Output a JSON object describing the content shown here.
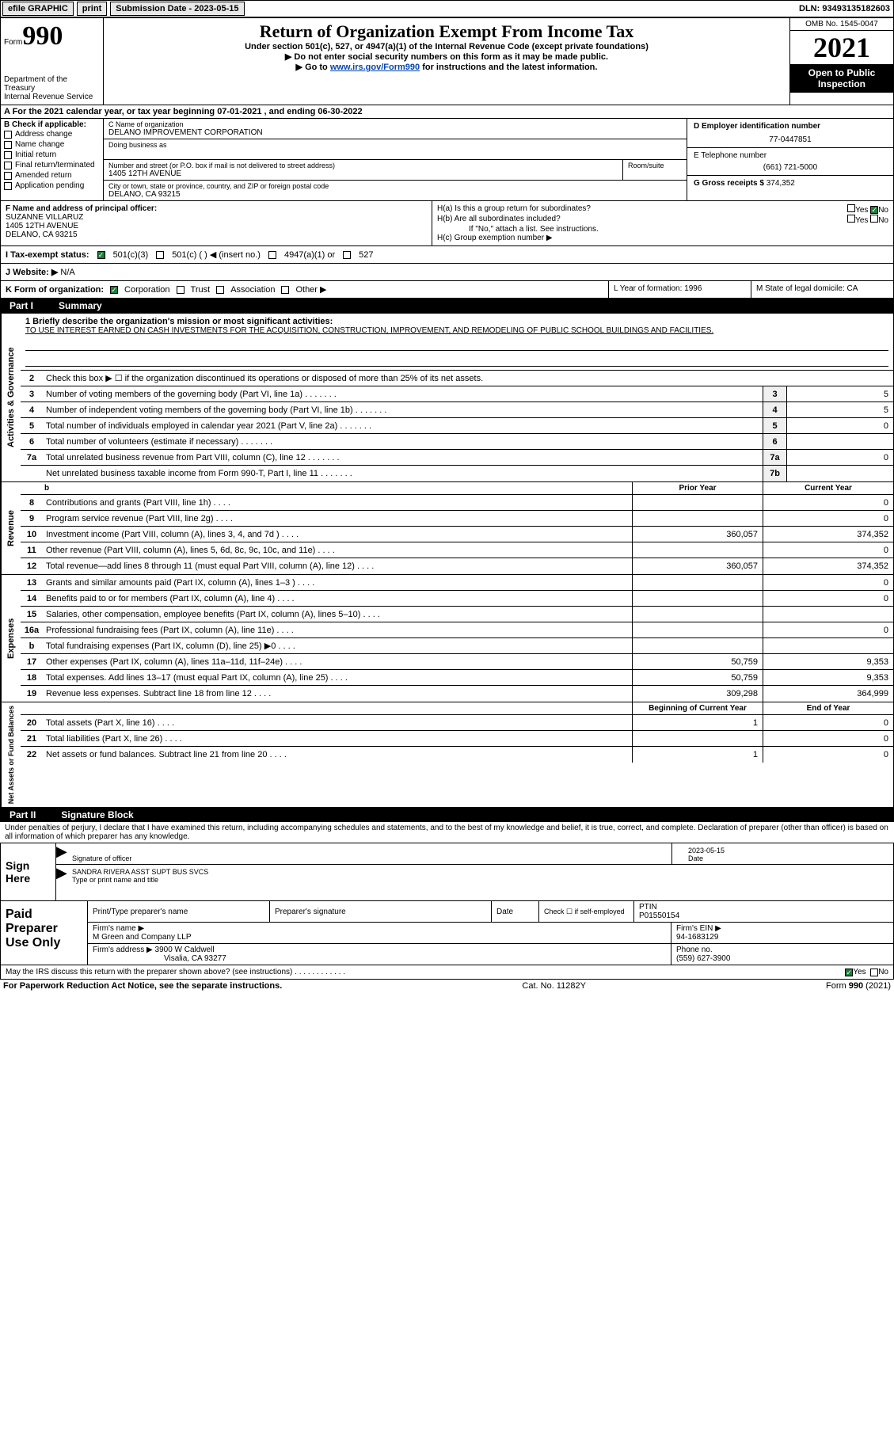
{
  "topbar": {
    "efile": "efile GRAPHIC",
    "print": "print",
    "submission_label": "Submission Date - 2023-05-15",
    "dln_label": "DLN: 93493135182603"
  },
  "header": {
    "form_prefix": "Form",
    "form_num": "990",
    "title": "Return of Organization Exempt From Income Tax",
    "subtitle1": "Under section 501(c), 527, or 4947(a)(1) of the Internal Revenue Code (except private foundations)",
    "subtitle2": "▶ Do not enter social security numbers on this form as it may be made public.",
    "subtitle3_prefix": "▶ Go to ",
    "subtitle3_link": "www.irs.gov/Form990",
    "subtitle3_suffix": " for instructions and the latest information.",
    "dept": "Department of the Treasury\nInternal Revenue Service",
    "omb": "OMB No. 1545-0047",
    "year": "2021",
    "inspection": "Open to Public Inspection"
  },
  "period": {
    "text_a": "A For the 2021 calendar year, or tax year beginning 07-01-2021    , and ending 06-30-2022"
  },
  "section_b": {
    "label": "B Check if applicable:",
    "items": [
      "Address change",
      "Name change",
      "Initial return",
      "Final return/terminated",
      "Amended return",
      "Application pending"
    ]
  },
  "section_c": {
    "name_label": "C Name of organization",
    "name": "DELANO IMPROVEMENT CORPORATION",
    "dba_label": "Doing business as",
    "street_label": "Number and street (or P.O. box if mail is not delivered to street address)",
    "room_label": "Room/suite",
    "street": "1405 12TH AVENUE",
    "city_label": "City or town, state or province, country, and ZIP or foreign postal code",
    "city": "DELANO, CA   93215"
  },
  "section_d": {
    "ein_label": "D Employer identification number",
    "ein": "77-0447851",
    "phone_label": "E Telephone number",
    "phone": "(661) 721-5000",
    "gross_label": "G Gross receipts $",
    "gross": "374,352"
  },
  "section_f": {
    "label": "F Name and address of principal officer:",
    "name": "SUZANNE VILLARUZ",
    "addr1": "1405 12TH AVENUE",
    "addr2": "DELANO, CA  93215"
  },
  "section_h": {
    "ha_label": "H(a)  Is this a group return for subordinates?",
    "hb_label": "H(b)  Are all subordinates included?",
    "hb_note": "If \"No,\" attach a list. See instructions.",
    "hc_label": "H(c)  Group exemption number ▶",
    "yes": "Yes",
    "no": "No"
  },
  "section_i": {
    "label": "I  Tax-exempt status:",
    "opt1": "501(c)(3)",
    "opt2": "501(c) (   ) ◀ (insert no.)",
    "opt3": "4947(a)(1) or",
    "opt4": "527"
  },
  "section_j": {
    "label": "J  Website: ▶",
    "val": "N/A"
  },
  "section_k": {
    "label": "K Form of organization:",
    "corp": "Corporation",
    "trust": "Trust",
    "assoc": "Association",
    "other": "Other ▶",
    "l_label": "L Year of formation: 1996",
    "m_label": "M State of legal domicile: CA"
  },
  "part1": {
    "part": "Part I",
    "title": "Summary",
    "vert_ag": "Activities & Governance",
    "vert_rev": "Revenue",
    "vert_exp": "Expenses",
    "vert_net": "Net Assets or Fund Balances",
    "line1_label": "1  Briefly describe the organization's mission or most significant activities:",
    "mission": "TO USE INTEREST EARNED ON CASH INVESTMENTS FOR THE ACQUISITION, CONSTRUCTION, IMPROVEMENT, AND REMODELING OF PUBLIC SCHOOL BUILDINGS AND FACILITIES.",
    "line2": "Check this box ▶ ☐ if the organization discontinued its operations or disposed of more than 25% of its net assets.",
    "lines_boxed": [
      {
        "n": "3",
        "t": "Number of voting members of the governing body (Part VI, line 1a)",
        "box": "3",
        "v": "5"
      },
      {
        "n": "4",
        "t": "Number of independent voting members of the governing body (Part VI, line 1b)",
        "box": "4",
        "v": "5"
      },
      {
        "n": "5",
        "t": "Total number of individuals employed in calendar year 2021 (Part V, line 2a)",
        "box": "5",
        "v": "0"
      },
      {
        "n": "6",
        "t": "Total number of volunteers (estimate if necessary)",
        "box": "6",
        "v": ""
      },
      {
        "n": "7a",
        "t": "Total unrelated business revenue from Part VIII, column (C), line 12",
        "box": "7a",
        "v": "0"
      },
      {
        "n": "",
        "t": "Net unrelated business taxable income from Form 990-T, Part I, line 11",
        "box": "7b",
        "v": ""
      }
    ],
    "col_prior": "Prior Year",
    "col_curr": "Current Year",
    "rev_lines": [
      {
        "n": "8",
        "t": "Contributions and grants (Part VIII, line 1h)",
        "p": "",
        "c": "0"
      },
      {
        "n": "9",
        "t": "Program service revenue (Part VIII, line 2g)",
        "p": "",
        "c": "0"
      },
      {
        "n": "10",
        "t": "Investment income (Part VIII, column (A), lines 3, 4, and 7d )",
        "p": "360,057",
        "c": "374,352"
      },
      {
        "n": "11",
        "t": "Other revenue (Part VIII, column (A), lines 5, 6d, 8c, 9c, 10c, and 11e)",
        "p": "",
        "c": "0"
      },
      {
        "n": "12",
        "t": "Total revenue—add lines 8 through 11 (must equal Part VIII, column (A), line 12)",
        "p": "360,057",
        "c": "374,352"
      }
    ],
    "exp_lines": [
      {
        "n": "13",
        "t": "Grants and similar amounts paid (Part IX, column (A), lines 1–3 )",
        "p": "",
        "c": "0"
      },
      {
        "n": "14",
        "t": "Benefits paid to or for members (Part IX, column (A), line 4)",
        "p": "",
        "c": "0"
      },
      {
        "n": "15",
        "t": "Salaries, other compensation, employee benefits (Part IX, column (A), lines 5–10)",
        "p": "",
        "c": ""
      },
      {
        "n": "16a",
        "t": "Professional fundraising fees (Part IX, column (A), line 11e)",
        "p": "",
        "c": "0"
      },
      {
        "n": "b",
        "t": "Total fundraising expenses (Part IX, column (D), line 25) ▶0",
        "p": "shaded",
        "c": "shaded"
      },
      {
        "n": "17",
        "t": "Other expenses (Part IX, column (A), lines 11a–11d, 11f–24e)",
        "p": "50,759",
        "c": "9,353"
      },
      {
        "n": "18",
        "t": "Total expenses. Add lines 13–17 (must equal Part IX, column (A), line 25)",
        "p": "50,759",
        "c": "9,353"
      },
      {
        "n": "19",
        "t": "Revenue less expenses. Subtract line 18 from line 12",
        "p": "309,298",
        "c": "364,999"
      }
    ],
    "col_begin": "Beginning of Current Year",
    "col_end": "End of Year",
    "net_lines": [
      {
        "n": "20",
        "t": "Total assets (Part X, line 16)",
        "p": "1",
        "c": "0"
      },
      {
        "n": "21",
        "t": "Total liabilities (Part X, line 26)",
        "p": "",
        "c": "0"
      },
      {
        "n": "22",
        "t": "Net assets or fund balances. Subtract line 21 from line 20",
        "p": "1",
        "c": "0"
      }
    ]
  },
  "part2": {
    "part": "Part II",
    "title": "Signature Block",
    "declaration": "Under penalties of perjury, I declare that I have examined this return, including accompanying schedules and statements, and to the best of my knowledge and belief, it is true, correct, and complete. Declaration of preparer (other than officer) is based on all information of which preparer has any knowledge."
  },
  "sign": {
    "label": "Sign Here",
    "sig_label": "Signature of officer",
    "date": "2023-05-15",
    "date_label": "Date",
    "name": "SANDRA RIVERA  ASST SUPT BUS SVCS",
    "name_label": "Type or print name and title"
  },
  "prep": {
    "label": "Paid Preparer Use Only",
    "col1": "Print/Type preparer's name",
    "col2": "Preparer's signature",
    "col3": "Date",
    "col4": "Check ☐ if self-employed",
    "col5_label": "PTIN",
    "col5": "P01550154",
    "firm_label": "Firm's name     ▶",
    "firm": "M Green and Company LLP",
    "ein_label": "Firm's EIN ▶",
    "ein": "94-1683129",
    "addr_label": "Firm's address ▶",
    "addr1": "3900 W Caldwell",
    "addr2": "Visalia, CA   93277",
    "phone_label": "Phone no.",
    "phone": "(559) 627-3900"
  },
  "discuss": {
    "text": "May the IRS discuss this return with the preparer shown above? (see instructions)",
    "yes": "Yes",
    "no": "No"
  },
  "footer": {
    "left": "For Paperwork Reduction Act Notice, see the separate instructions.",
    "mid": "Cat. No. 11282Y",
    "right": "Form 990 (2021)"
  }
}
